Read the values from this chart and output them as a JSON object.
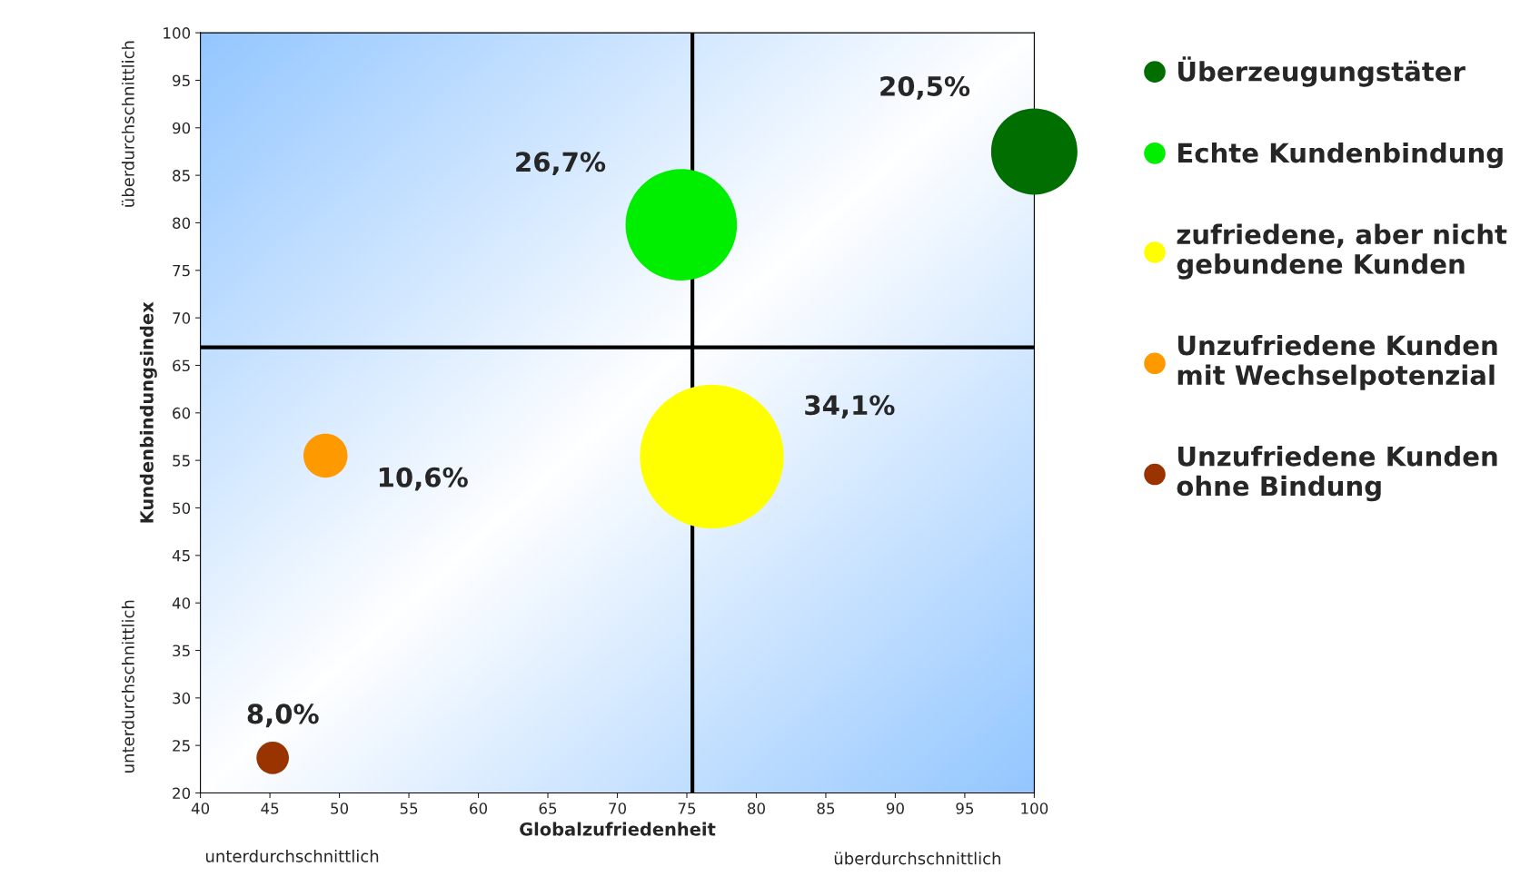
{
  "chart_data": {
    "type": "bubble",
    "xlabel": "Globalzufriedenheit",
    "ylabel": "Kundenbindungsindex",
    "xlim": [
      40,
      100
    ],
    "xticks": [
      40,
      45,
      50,
      55,
      60,
      65,
      70,
      75,
      80,
      85,
      90,
      95,
      100
    ],
    "ylim": [
      20,
      100
    ],
    "yticks": [
      20,
      25,
      30,
      35,
      40,
      45,
      50,
      55,
      60,
      65,
      70,
      75,
      80,
      85,
      90,
      95,
      100
    ],
    "series": [
      {
        "name": "Überzeugungstäter",
        "color": "#006e00",
        "x": [
          100
        ],
        "values": [
          87.5
        ],
        "sizes": [
          0.36
        ]
      },
      {
        "name": "Echte Kundenbindung",
        "color": "#00ee00",
        "x": [
          74.6
        ],
        "values": [
          79.8
        ],
        "sizes": [
          0.6
        ]
      },
      {
        "name": "zufriedene, aber nicht\ngebundene Kunden",
        "color": "#ffff00",
        "x": [
          76.8
        ],
        "values": [
          55.4
        ],
        "sizes": [
          1
        ]
      },
      {
        "name": "Unzufriedene Kunden\nmit Wechselpotenzial",
        "color": "#ff9900",
        "x": [
          49.0
        ],
        "values": [
          55.5
        ],
        "sizes": [
          0.094
        ]
      },
      {
        "name": "Unzufriedene Kunden\nohne Bindung",
        "color": "#993300",
        "x": [
          45.2
        ],
        "values": [
          23.7
        ],
        "sizes": [
          0.051
        ]
      }
    ],
    "ref_lines": [
      {
        "axis": "x",
        "value": 75.4,
        "color": "#000000"
      },
      {
        "axis": "y",
        "value": 66.9,
        "color": "#000000"
      }
    ],
    "annotations": [
      "unterdurchschnittlich",
      "überdurchschnittlich",
      "unterdurchschnittlich",
      "überdurchschnittlich",
      "20,5%",
      "26,7%",
      "34,1%",
      "10,6%",
      "8,0%"
    ],
    "legend": "right",
    "grid": false
  }
}
